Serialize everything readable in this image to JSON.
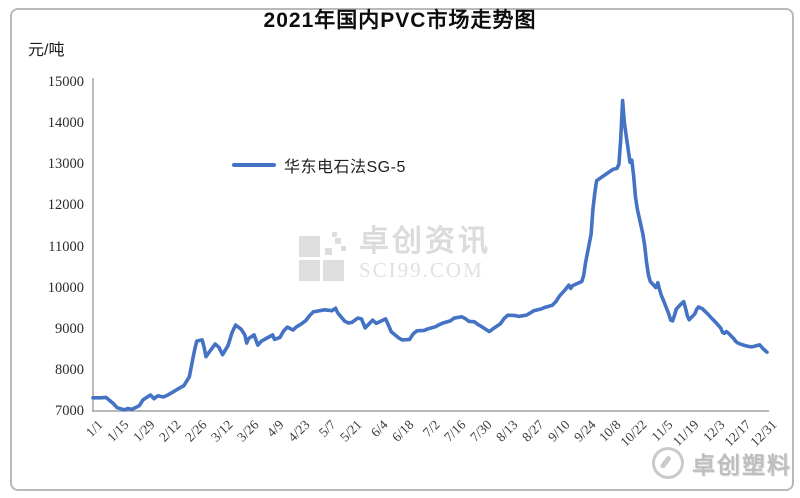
{
  "card": {
    "title": "2021年国内PVC市场走势图",
    "y_unit_label": "元/吨"
  },
  "legend": {
    "label": "华东电石法SG-5",
    "line_color": "#4472c4"
  },
  "watermark_center": {
    "brand": "卓创资讯",
    "site": "SCI99.COM"
  },
  "watermark_corner": {
    "brand": "卓创塑料"
  },
  "colors": {
    "line": "#4472c4",
    "axis": "#a0a0a0",
    "tick_text": "#3a3a3a",
    "card_border": "#b9b9b9"
  },
  "chart_data": {
    "type": "line",
    "title": "2021年国内PVC市场走势图",
    "ylabel": "元/吨",
    "ylim": [
      7000,
      15000
    ],
    "y_ticks": [
      15000,
      14000,
      13000,
      12000,
      11000,
      10000,
      9000,
      8000,
      7000
    ],
    "x_tick_labels": [
      "1/1",
      "1/15",
      "1/29",
      "2/12",
      "2/26",
      "3/12",
      "3/26",
      "4/9",
      "4/23",
      "5/7",
      "5/21",
      "6/4",
      "6/18",
      "7/2",
      "7/16",
      "7/30",
      "8/13",
      "8/27",
      "9/10",
      "9/24",
      "10/8",
      "10/22",
      "11/5",
      "11/19",
      "12/3",
      "12/17",
      "12/31"
    ],
    "grid": false,
    "legend_position": "inside-upper-left",
    "series": [
      {
        "name": "华东电石法SG-5",
        "color": "#4472c4",
        "points": [
          [
            "1/1",
            7320
          ],
          [
            "1/5",
            7320
          ],
          [
            "1/8",
            7330
          ],
          [
            "1/12",
            7180
          ],
          [
            "1/14",
            7080
          ],
          [
            "1/18",
            7030
          ],
          [
            "1/20",
            7060
          ],
          [
            "1/22",
            7040
          ],
          [
            "1/26",
            7130
          ],
          [
            "1/28",
            7270
          ],
          [
            "2/1",
            7390
          ],
          [
            "2/3",
            7300
          ],
          [
            "2/5",
            7370
          ],
          [
            "2/8",
            7340
          ],
          [
            "2/10",
            7380
          ],
          [
            "2/18",
            7590
          ],
          [
            "2/19",
            7610
          ],
          [
            "2/22",
            7830
          ],
          [
            "2/23",
            8050
          ],
          [
            "2/24",
            8290
          ],
          [
            "2/25",
            8500
          ],
          [
            "2/26",
            8700
          ],
          [
            "3/1",
            8730
          ],
          [
            "3/2",
            8550
          ],
          [
            "3/3",
            8320
          ],
          [
            "3/5",
            8450
          ],
          [
            "3/8",
            8630
          ],
          [
            "3/10",
            8550
          ],
          [
            "3/12",
            8370
          ],
          [
            "3/15",
            8600
          ],
          [
            "3/17",
            8900
          ],
          [
            "3/19",
            9090
          ],
          [
            "3/22",
            8990
          ],
          [
            "3/24",
            8850
          ],
          [
            "3/25",
            8650
          ],
          [
            "3/26",
            8760
          ],
          [
            "3/29",
            8850
          ],
          [
            "3/31",
            8600
          ],
          [
            "4/2",
            8700
          ],
          [
            "4/6",
            8800
          ],
          [
            "4/8",
            8850
          ],
          [
            "4/9",
            8740
          ],
          [
            "4/12",
            8790
          ],
          [
            "4/14",
            8950
          ],
          [
            "4/16",
            9040
          ],
          [
            "4/19",
            8970
          ],
          [
            "4/21",
            9050
          ],
          [
            "4/23",
            9100
          ],
          [
            "4/26",
            9200
          ],
          [
            "4/28",
            9320
          ],
          [
            "4/30",
            9410
          ],
          [
            "5/6",
            9460
          ],
          [
            "5/10",
            9440
          ],
          [
            "5/12",
            9500
          ],
          [
            "5/13",
            9400
          ],
          [
            "5/14",
            9340
          ],
          [
            "5/17",
            9180
          ],
          [
            "5/19",
            9140
          ],
          [
            "5/21",
            9160
          ],
          [
            "5/24",
            9260
          ],
          [
            "5/26",
            9240
          ],
          [
            "5/28",
            9020
          ],
          [
            "6/1",
            9210
          ],
          [
            "6/3",
            9130
          ],
          [
            "6/8",
            9240
          ],
          [
            "6/10",
            9040
          ],
          [
            "6/11",
            8930
          ],
          [
            "6/15",
            8780
          ],
          [
            "6/17",
            8730
          ],
          [
            "6/21",
            8740
          ],
          [
            "6/23",
            8880
          ],
          [
            "6/25",
            8950
          ],
          [
            "6/29",
            8960
          ],
          [
            "7/1",
            9000
          ],
          [
            "7/5",
            9050
          ],
          [
            "7/7",
            9100
          ],
          [
            "7/9",
            9140
          ],
          [
            "7/13",
            9190
          ],
          [
            "7/15",
            9260
          ],
          [
            "7/19",
            9290
          ],
          [
            "7/21",
            9250
          ],
          [
            "7/23",
            9180
          ],
          [
            "7/26",
            9170
          ],
          [
            "7/28",
            9100
          ],
          [
            "7/30",
            9050
          ],
          [
            "8/3",
            8930
          ],
          [
            "8/5",
            9000
          ],
          [
            "8/9",
            9120
          ],
          [
            "8/11",
            9250
          ],
          [
            "8/13",
            9330
          ],
          [
            "8/17",
            9320
          ],
          [
            "8/19",
            9300
          ],
          [
            "8/23",
            9330
          ],
          [
            "8/25",
            9380
          ],
          [
            "8/27",
            9440
          ],
          [
            "8/31",
            9480
          ],
          [
            "9/2",
            9520
          ],
          [
            "9/6",
            9570
          ],
          [
            "9/8",
            9660
          ],
          [
            "9/10",
            9800
          ],
          [
            "9/13",
            9950
          ],
          [
            "9/15",
            10060
          ],
          [
            "9/16",
            9980
          ],
          [
            "9/17",
            10050
          ],
          [
            "9/22",
            10150
          ],
          [
            "9/23",
            10300
          ],
          [
            "9/24",
            10600
          ],
          [
            "9/27",
            11300
          ],
          [
            "9/28",
            11900
          ],
          [
            "9/29",
            12300
          ],
          [
            "9/30",
            12600
          ],
          [
            "10/8",
            12850
          ],
          [
            "10/9",
            12880
          ],
          [
            "10/11",
            12900
          ],
          [
            "10/12",
            13000
          ],
          [
            "10/13",
            13600
          ],
          [
            "10/14",
            14550
          ],
          [
            "10/15",
            14000
          ],
          [
            "10/18",
            13050
          ],
          [
            "10/19",
            13100
          ],
          [
            "10/20",
            12700
          ],
          [
            "10/21",
            12200
          ],
          [
            "10/22",
            11900
          ],
          [
            "10/25",
            11300
          ],
          [
            "10/26",
            11000
          ],
          [
            "10/27",
            10600
          ],
          [
            "10/28",
            10300
          ],
          [
            "10/29",
            10150
          ],
          [
            "11/1",
            10000
          ],
          [
            "11/2",
            10120
          ],
          [
            "11/3",
            9950
          ],
          [
            "11/4",
            9800
          ],
          [
            "11/5",
            9700
          ],
          [
            "11/8",
            9350
          ],
          [
            "11/9",
            9210
          ],
          [
            "11/10",
            9190
          ],
          [
            "11/11",
            9320
          ],
          [
            "11/12",
            9480
          ],
          [
            "11/15",
            9620
          ],
          [
            "11/16",
            9660
          ],
          [
            "11/17",
            9500
          ],
          [
            "11/18",
            9310
          ],
          [
            "11/19",
            9220
          ],
          [
            "11/22",
            9360
          ],
          [
            "11/23",
            9470
          ],
          [
            "11/24",
            9530
          ],
          [
            "11/26",
            9490
          ],
          [
            "11/29",
            9360
          ],
          [
            "12/1",
            9260
          ],
          [
            "12/3",
            9170
          ],
          [
            "12/6",
            9020
          ],
          [
            "12/7",
            8910
          ],
          [
            "12/8",
            8890
          ],
          [
            "12/9",
            8930
          ],
          [
            "12/10",
            8900
          ],
          [
            "12/13",
            8760
          ],
          [
            "12/14",
            8700
          ],
          [
            "12/15",
            8660
          ],
          [
            "12/17",
            8620
          ],
          [
            "12/20",
            8580
          ],
          [
            "12/22",
            8560
          ],
          [
            "12/24",
            8570
          ],
          [
            "12/27",
            8610
          ],
          [
            "12/28",
            8560
          ],
          [
            "12/29",
            8510
          ],
          [
            "12/30",
            8470
          ],
          [
            "12/31",
            8430
          ]
        ]
      }
    ]
  }
}
